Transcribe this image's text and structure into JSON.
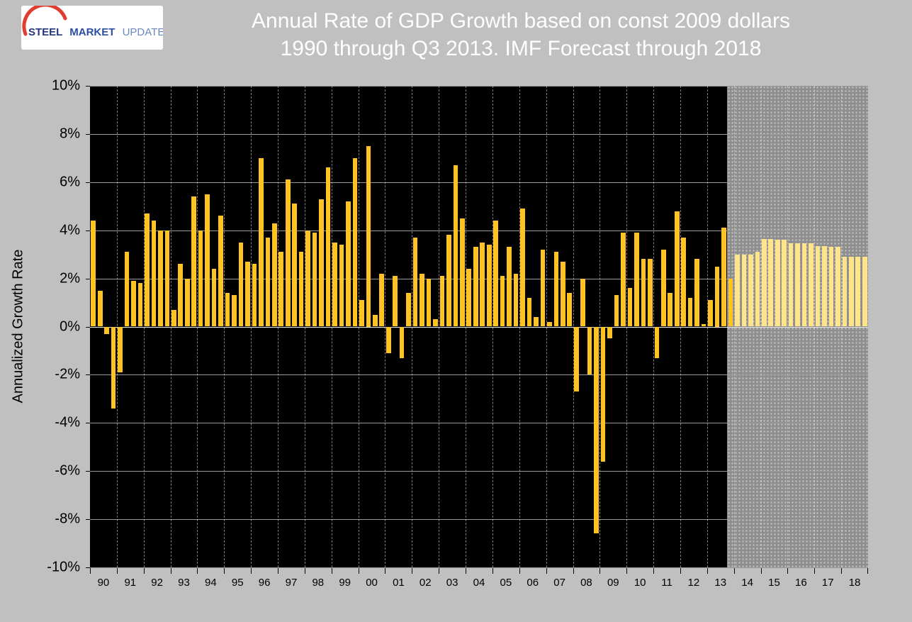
{
  "header": {
    "title_line1": "Annual Rate of GDP Growth based on const 2009 dollars",
    "title_line2": "1990 through Q3 2013. IMF Forecast through 2018",
    "logo": {
      "word1": "STEEL",
      "word2": "MARKET",
      "word3": "UPDATE"
    }
  },
  "chart_data": {
    "type": "bar",
    "title": "Annual Rate of GDP Growth based on const 2009 dollars 1990 through Q3 2013. IMF Forecast through 2018",
    "xlabel": "",
    "ylabel": "Annualized Growth Rate",
    "ylim": [
      -10,
      10
    ],
    "ytick_step": 2,
    "ytick_labels": [
      "10%",
      "8%",
      "6%",
      "4%",
      "2%",
      "0%",
      "-2%",
      "-4%",
      "-6%",
      "-8%",
      "-10%"
    ],
    "grid": true,
    "legend": "none",
    "years": [
      "90",
      "91",
      "92",
      "93",
      "94",
      "95",
      "96",
      "97",
      "98",
      "99",
      "00",
      "01",
      "02",
      "03",
      "04",
      "05",
      "06",
      "07",
      "08",
      "09",
      "10",
      "11",
      "12",
      "13",
      "14",
      "15",
      "16",
      "17",
      "18"
    ],
    "quarters_per_year": 4,
    "forecast_region_start_index": 95,
    "colors": {
      "page_bg": "#C0C0C0",
      "plot_bg": "#000000",
      "forecast_bg": "#8E8E8E",
      "actual_bar": "#FFC423",
      "forecast_bar": "#FFE48A",
      "gridline": "#9A9A9A",
      "title_text": "#FFFFFF",
      "axis_text": "#000000",
      "logo_swoosh": "#E03C31",
      "logo_blue": "#24357E"
    },
    "series": [
      {
        "name": "Actual quarterly annualized GDP growth (const 2009 dollars)",
        "start": "1990 Q1",
        "values": [
          4.4,
          1.5,
          -0.3,
          -3.4,
          -1.9,
          3.1,
          1.9,
          1.8,
          4.7,
          4.4,
          4.0,
          4.0,
          0.7,
          2.6,
          2.0,
          5.4,
          4.0,
          5.5,
          2.4,
          4.6,
          1.4,
          1.3,
          3.5,
          2.7,
          2.6,
          7.0,
          3.7,
          4.3,
          3.1,
          6.1,
          5.1,
          3.1,
          4.0,
          3.9,
          5.3,
          6.6,
          3.5,
          3.4,
          5.2,
          7.0,
          1.1,
          7.5,
          0.5,
          2.2,
          -1.1,
          2.1,
          -1.3,
          1.4,
          3.7,
          2.2,
          2.0,
          0.3,
          2.1,
          3.8,
          6.7,
          4.5,
          2.4,
          3.3,
          3.5,
          3.4,
          4.4,
          2.1,
          3.3,
          2.2,
          4.9,
          1.2,
          0.4,
          3.2,
          0.2,
          3.1,
          2.7,
          1.4,
          -2.7,
          2.0,
          -2.0,
          -8.6,
          -5.6,
          -0.5,
          1.3,
          3.9,
          1.6,
          3.9,
          2.8,
          2.8,
          -1.3,
          3.2,
          1.4,
          4.8,
          3.7,
          1.2,
          2.8,
          0.1,
          1.1,
          2.5,
          4.1,
          2.0
        ]
      },
      {
        "name": "IMF Forecast through 2018",
        "start": "2014 Q1",
        "values": [
          3.0,
          3.0,
          3.0,
          3.1,
          3.65,
          3.65,
          3.6,
          3.6,
          3.45,
          3.45,
          3.45,
          3.45,
          3.35,
          3.35,
          3.3,
          3.3,
          2.9,
          2.9,
          2.9,
          2.9
        ]
      }
    ]
  }
}
